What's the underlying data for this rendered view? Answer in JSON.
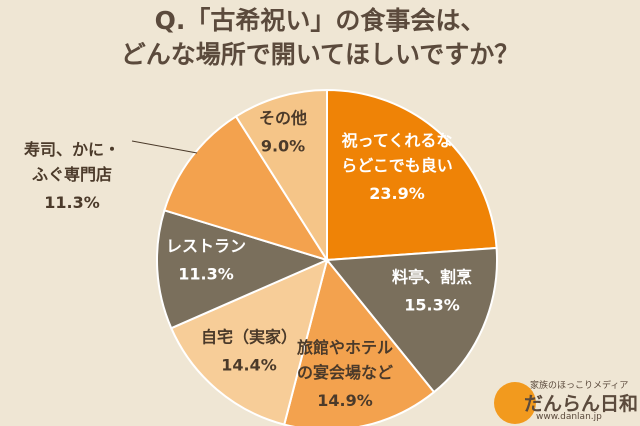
{
  "title_lines": [
    "Q.「古希祝い」の食事会は、",
    "どんな場所で開いてほしいですか？"
  ],
  "chart_data": {
    "type": "pie",
    "title": "Q.「古希祝い」の食事会は、どんな場所で開いてほしいですか？",
    "slices": [
      {
        "label_lines": [
          "祝ってくれるな",
          "らどこでも良い"
        ],
        "value": 23.9,
        "value_label": "23.9%",
        "color": "#ef8306",
        "text_color": "#ffffff"
      },
      {
        "label_lines": [
          "料亭、割烹"
        ],
        "value": 15.3,
        "value_label": "15.3%",
        "color": "#7a6f5c",
        "text_color": "#ffffff"
      },
      {
        "label_lines": [
          "旅館やホテル",
          "の宴会場など"
        ],
        "value": 14.9,
        "value_label": "14.9%",
        "color": "#f3a24e",
        "text_color": "#4b3a2a"
      },
      {
        "label_lines": [
          "自宅（実家）"
        ],
        "value": 14.4,
        "value_label": "14.4%",
        "color": "#f7cd98",
        "text_color": "#4b3a2a"
      },
      {
        "label_lines": [
          "レストラン"
        ],
        "value": 11.3,
        "value_label": "11.3%",
        "color": "#7a6f5c",
        "text_color": "#ffffff"
      },
      {
        "label_lines": [
          "寿司、かに・",
          "ふぐ専門店"
        ],
        "value": 11.3,
        "value_label": "11.3%",
        "color": "#f3a24e",
        "text_color": "#4b3a2a"
      },
      {
        "label_lines": [
          "その他"
        ],
        "value": 9.0,
        "value_label": "9.0%",
        "color": "#f5c588",
        "text_color": "#4b3a2a"
      }
    ]
  },
  "logo": {
    "tagline": "家族のほっこりメディア",
    "name": "だんらん日和",
    "url": "www.danlan.jp"
  }
}
